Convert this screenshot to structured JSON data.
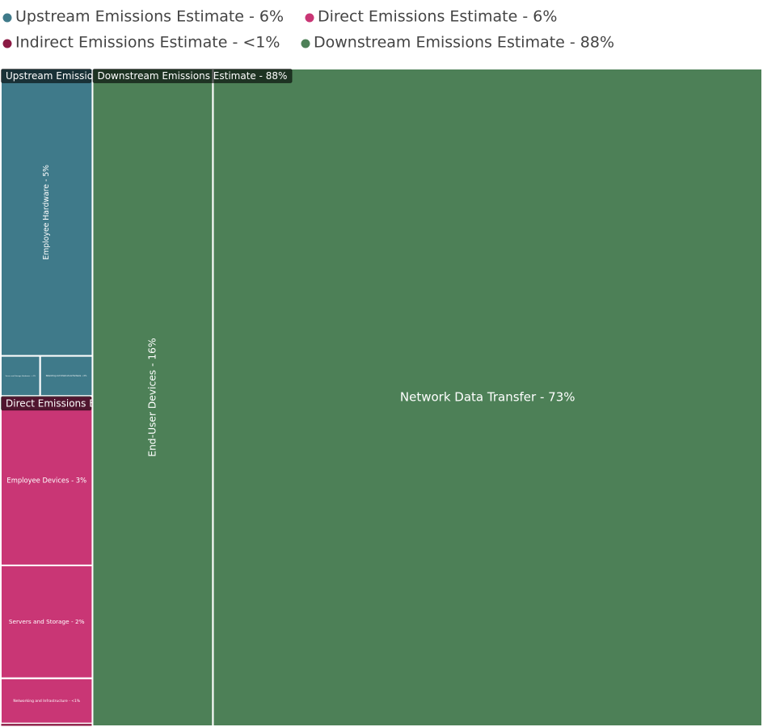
{
  "chart_data": {
    "type": "treemap",
    "groups": [
      {
        "label": "Upstream Emissions Estimate - 6%",
        "value": 6,
        "color": "#3f7a8a",
        "children": [
          {
            "label": "Employee Hardware - 5%",
            "value": 5
          },
          {
            "label": "Server and Storage Hardware - <1%",
            "value": 0.3
          },
          {
            "label": "Networking and Infrastructure Hardware - <1%",
            "value": 0.4
          }
        ]
      },
      {
        "label": "Direct Emissions Estimate - 6%",
        "value": 6,
        "color": "#c93675",
        "children": [
          {
            "label": "Employee Devices - 3%",
            "value": 3
          },
          {
            "label": "Servers and Storage - 2%",
            "value": 2
          },
          {
            "label": "Networking and Infrastructure - <1%",
            "value": 0.8
          }
        ]
      },
      {
        "label": "Indirect Emissions Estimate - <1%",
        "value": 0.05,
        "color": "#8b1a44",
        "children": []
      },
      {
        "label": "Downstream Emissions Estimate - 88%",
        "value": 88,
        "color": "#4d8057",
        "children": [
          {
            "label": "End-User Devices - 16%",
            "value": 16
          },
          {
            "label": "Network Data Transfer - 73%",
            "value": 73
          }
        ]
      }
    ]
  }
}
